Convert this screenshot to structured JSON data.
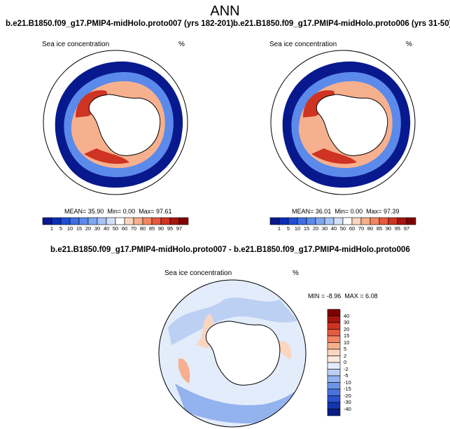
{
  "figure": {
    "title": "ANN"
  },
  "panels": [
    {
      "title": "b.e21.B1850.f09_g17.PMIP4-midHolo.proto007 (yrs 182-201)",
      "variable": "Sea ice concentration",
      "units": "%",
      "stats": {
        "mean_label": "MEAN=",
        "mean": "35.90",
        "min_label": "Min=",
        "min": "0.00",
        "max_label": "Max=",
        "max": "97.61"
      }
    },
    {
      "title": "b.e21.B1850.f09_g17.PMIP4-midHolo.proto006 (yrs 31-50)",
      "variable": "Sea ice concentration",
      "units": "%",
      "stats": {
        "mean_label": "MEAN=",
        "mean": "36.01",
        "min_label": "Min=",
        "min": "0.00",
        "max_label": "Max=",
        "max": "97.39"
      }
    }
  ],
  "diff_panel": {
    "title": "b.e21.B1850.f09_g17.PMIP4-midHolo.proto007 - b.e21.B1850.f09_g17.PMIP4-midHolo.proto006",
    "variable": "Sea ice concentration",
    "units": "%",
    "stats": {
      "min_label": "MIN =",
      "min": "-8.96",
      "max_label": "MAX =",
      "max": "6.08"
    }
  },
  "colorbar_abs": {
    "ticks": [
      "1",
      "5",
      "10",
      "15",
      "20",
      "30",
      "40",
      "50",
      "60",
      "70",
      "80",
      "85",
      "90",
      "95",
      "97"
    ],
    "colors": [
      "#08198e",
      "#0a2fb8",
      "#1f4fd6",
      "#3d6ee4",
      "#5b8aeb",
      "#7fa6f0",
      "#a7c3f5",
      "#d2e0f9",
      "#ffffff",
      "#fbd5c0",
      "#f7b08e",
      "#f28664",
      "#e65a3d",
      "#cf3322",
      "#a8140f",
      "#800000"
    ]
  },
  "colorbar_diff": {
    "ticks": [
      "40",
      "30",
      "20",
      "15",
      "10",
      "5",
      "2",
      "0",
      "-2",
      "-5",
      "-10",
      "-15",
      "-20",
      "-30",
      "-40"
    ],
    "colors": [
      "#800000",
      "#a8140f",
      "#cf3322",
      "#e65a3d",
      "#f28664",
      "#f7b08e",
      "#fbd5c0",
      "#fde8dc",
      "#e3ecfa",
      "#bcd0f4",
      "#93b3ee",
      "#6d94e8",
      "#4a73df",
      "#2a52cf",
      "#1434ad",
      "#081c86"
    ]
  }
}
